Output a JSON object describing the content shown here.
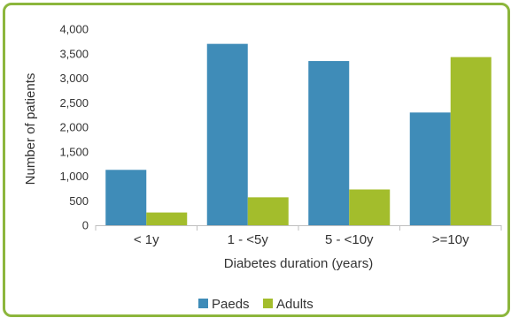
{
  "chart_data": {
    "type": "bar",
    "categories": [
      "< 1y",
      "1 - <5y",
      "5 - <10y",
      ">=10y"
    ],
    "series": [
      {
        "name": "Paeds",
        "color": "#3f8cb8",
        "values": [
          1130,
          3700,
          3350,
          2300
        ]
      },
      {
        "name": "Adults",
        "color": "#a3bd2c",
        "values": [
          260,
          570,
          730,
          3430
        ]
      }
    ],
    "xlabel": "Diabetes duration (years)",
    "ylabel": "Number of patients",
    "ylim": [
      0,
      4000
    ],
    "yticks": [
      0,
      500,
      1000,
      1500,
      2000,
      2500,
      3000,
      3500,
      4000
    ],
    "ytick_labels": [
      "0",
      "500",
      "1,000",
      "1,500",
      "2,000",
      "2,500",
      "3,000",
      "3,500",
      "4,000"
    ],
    "grid": false,
    "legend_position": "bottom"
  }
}
